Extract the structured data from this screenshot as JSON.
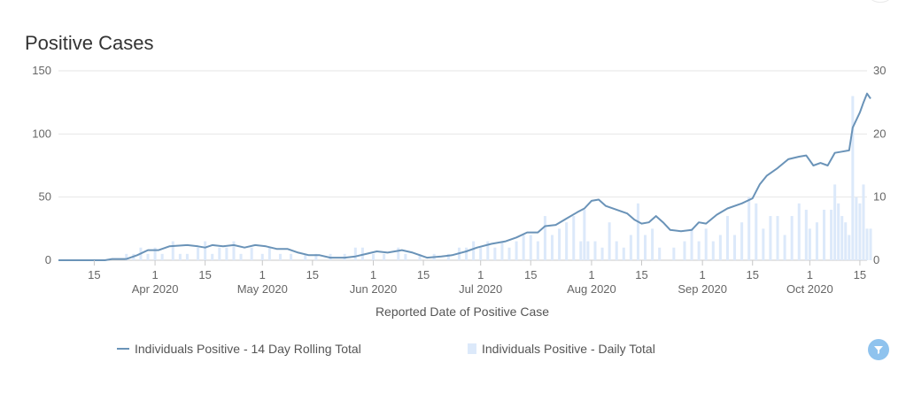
{
  "chart_data": {
    "type": "bar+line",
    "title": "Positive Cases",
    "xlabel": "Reported Date of Positive Case",
    "x_start": "2020-03-05",
    "x_end": "2020-10-17",
    "y_left": {
      "min": 0,
      "max": 150,
      "ticks": [
        0,
        50,
        100,
        150
      ]
    },
    "y_right": {
      "min": 0,
      "max": 30,
      "ticks": [
        0,
        10,
        20,
        30
      ]
    },
    "x_ticks": [
      {
        "date": "2020-03-15",
        "label": "15",
        "month": ""
      },
      {
        "date": "2020-04-01",
        "label": "1",
        "month": "Apr 2020"
      },
      {
        "date": "2020-04-15",
        "label": "15",
        "month": ""
      },
      {
        "date": "2020-05-01",
        "label": "1",
        "month": "May 2020"
      },
      {
        "date": "2020-05-15",
        "label": "15",
        "month": ""
      },
      {
        "date": "2020-06-01",
        "label": "1",
        "month": "Jun 2020"
      },
      {
        "date": "2020-06-15",
        "label": "15",
        "month": ""
      },
      {
        "date": "2020-07-01",
        "label": "1",
        "month": "Jul 2020"
      },
      {
        "date": "2020-07-15",
        "label": "15",
        "month": ""
      },
      {
        "date": "2020-08-01",
        "label": "1",
        "month": "Aug 2020"
      },
      {
        "date": "2020-08-15",
        "label": "15",
        "month": ""
      },
      {
        "date": "2020-09-01",
        "label": "1",
        "month": "Sep 2020"
      },
      {
        "date": "2020-09-15",
        "label": "15",
        "month": ""
      },
      {
        "date": "2020-10-01",
        "label": "1",
        "month": "Oct 2020"
      },
      {
        "date": "2020-10-15",
        "label": "15",
        "month": ""
      }
    ],
    "series": [
      {
        "name": "Individuals Positive - 14 Day Rolling Total",
        "type": "line",
        "axis": "left",
        "color": "#6a93b8",
        "points": [
          [
            "2020-03-05",
            0
          ],
          [
            "2020-03-18",
            0
          ],
          [
            "2020-03-20",
            1
          ],
          [
            "2020-03-24",
            1
          ],
          [
            "2020-03-27",
            4
          ],
          [
            "2020-03-30",
            8
          ],
          [
            "2020-04-02",
            8
          ],
          [
            "2020-04-05",
            11
          ],
          [
            "2020-04-10",
            12
          ],
          [
            "2020-04-13",
            11
          ],
          [
            "2020-04-15",
            10
          ],
          [
            "2020-04-17",
            12
          ],
          [
            "2020-04-20",
            11
          ],
          [
            "2020-04-23",
            12
          ],
          [
            "2020-04-26",
            10
          ],
          [
            "2020-04-29",
            12
          ],
          [
            "2020-05-02",
            11
          ],
          [
            "2020-05-05",
            9
          ],
          [
            "2020-05-08",
            9
          ],
          [
            "2020-05-11",
            6
          ],
          [
            "2020-05-14",
            4
          ],
          [
            "2020-05-17",
            4
          ],
          [
            "2020-05-20",
            2
          ],
          [
            "2020-05-24",
            2
          ],
          [
            "2020-05-27",
            3
          ],
          [
            "2020-05-30",
            5
          ],
          [
            "2020-06-02",
            7
          ],
          [
            "2020-06-05",
            6
          ],
          [
            "2020-06-09",
            8
          ],
          [
            "2020-06-12",
            6
          ],
          [
            "2020-06-16",
            2
          ],
          [
            "2020-06-20",
            3
          ],
          [
            "2020-06-23",
            4
          ],
          [
            "2020-06-27",
            7
          ],
          [
            "2020-06-30",
            10
          ],
          [
            "2020-07-04",
            13
          ],
          [
            "2020-07-08",
            15
          ],
          [
            "2020-07-11",
            18
          ],
          [
            "2020-07-14",
            22
          ],
          [
            "2020-07-17",
            22
          ],
          [
            "2020-07-19",
            27
          ],
          [
            "2020-07-22",
            28
          ],
          [
            "2020-07-25",
            33
          ],
          [
            "2020-07-28",
            38
          ],
          [
            "2020-07-30",
            41
          ],
          [
            "2020-08-01",
            47
          ],
          [
            "2020-08-03",
            48
          ],
          [
            "2020-08-05",
            43
          ],
          [
            "2020-08-08",
            40
          ],
          [
            "2020-08-11",
            37
          ],
          [
            "2020-08-13",
            32
          ],
          [
            "2020-08-15",
            29
          ],
          [
            "2020-08-17",
            30
          ],
          [
            "2020-08-19",
            35
          ],
          [
            "2020-08-21",
            30
          ],
          [
            "2020-08-23",
            24
          ],
          [
            "2020-08-26",
            23
          ],
          [
            "2020-08-29",
            24
          ],
          [
            "2020-08-31",
            30
          ],
          [
            "2020-09-02",
            29
          ],
          [
            "2020-09-05",
            36
          ],
          [
            "2020-09-08",
            41
          ],
          [
            "2020-09-12",
            45
          ],
          [
            "2020-09-15",
            49
          ],
          [
            "2020-09-17",
            60
          ],
          [
            "2020-09-19",
            67
          ],
          [
            "2020-09-22",
            73
          ],
          [
            "2020-09-25",
            80
          ],
          [
            "2020-09-28",
            82
          ],
          [
            "2020-09-30",
            83
          ],
          [
            "2020-10-02",
            75
          ],
          [
            "2020-10-04",
            77
          ],
          [
            "2020-10-06",
            75
          ],
          [
            "2020-10-08",
            85
          ],
          [
            "2020-10-10",
            86
          ],
          [
            "2020-10-12",
            87
          ],
          [
            "2020-10-13",
            105
          ],
          [
            "2020-10-15",
            117
          ],
          [
            "2020-10-16",
            125
          ],
          [
            "2020-10-17",
            132
          ],
          [
            "2020-10-18",
            128
          ]
        ]
      },
      {
        "name": "Individuals Positive - Daily Total",
        "type": "bar",
        "axis": "right",
        "color": "#dce9fa",
        "points": [
          [
            "2020-03-24",
            1
          ],
          [
            "2020-03-26",
            1
          ],
          [
            "2020-03-28",
            2
          ],
          [
            "2020-03-30",
            1
          ],
          [
            "2020-04-01",
            2
          ],
          [
            "2020-04-03",
            1
          ],
          [
            "2020-04-06",
            3
          ],
          [
            "2020-04-08",
            1
          ],
          [
            "2020-04-10",
            1
          ],
          [
            "2020-04-13",
            2
          ],
          [
            "2020-04-15",
            3
          ],
          [
            "2020-04-17",
            1
          ],
          [
            "2020-04-19",
            2
          ],
          [
            "2020-04-21",
            2
          ],
          [
            "2020-04-23",
            3
          ],
          [
            "2020-04-25",
            1
          ],
          [
            "2020-04-28",
            2
          ],
          [
            "2020-05-01",
            1
          ],
          [
            "2020-05-03",
            2
          ],
          [
            "2020-05-06",
            1
          ],
          [
            "2020-05-09",
            1
          ],
          [
            "2020-05-13",
            1
          ],
          [
            "2020-05-16",
            1
          ],
          [
            "2020-05-20",
            1
          ],
          [
            "2020-05-24",
            1
          ],
          [
            "2020-05-27",
            2
          ],
          [
            "2020-05-29",
            2
          ],
          [
            "2020-06-01",
            1
          ],
          [
            "2020-06-04",
            1
          ],
          [
            "2020-06-08",
            2
          ],
          [
            "2020-06-10",
            1
          ],
          [
            "2020-06-14",
            1
          ],
          [
            "2020-06-18",
            1
          ],
          [
            "2020-06-22",
            1
          ],
          [
            "2020-06-25",
            2
          ],
          [
            "2020-06-27",
            2
          ],
          [
            "2020-06-29",
            3
          ],
          [
            "2020-07-01",
            2
          ],
          [
            "2020-07-03",
            3
          ],
          [
            "2020-07-05",
            2
          ],
          [
            "2020-07-07",
            3
          ],
          [
            "2020-07-09",
            2
          ],
          [
            "2020-07-11",
            3
          ],
          [
            "2020-07-13",
            4
          ],
          [
            "2020-07-15",
            4
          ],
          [
            "2020-07-17",
            3
          ],
          [
            "2020-07-19",
            7
          ],
          [
            "2020-07-21",
            4
          ],
          [
            "2020-07-23",
            5
          ],
          [
            "2020-07-25",
            6
          ],
          [
            "2020-07-27",
            7
          ],
          [
            "2020-07-29",
            3
          ],
          [
            "2020-07-30",
            8
          ],
          [
            "2020-07-31",
            3
          ],
          [
            "2020-08-02",
            3
          ],
          [
            "2020-08-04",
            2
          ],
          [
            "2020-08-06",
            6
          ],
          [
            "2020-08-08",
            3
          ],
          [
            "2020-08-10",
            2
          ],
          [
            "2020-08-12",
            4
          ],
          [
            "2020-08-14",
            9
          ],
          [
            "2020-08-16",
            4
          ],
          [
            "2020-08-18",
            5
          ],
          [
            "2020-08-20",
            2
          ],
          [
            "2020-08-24",
            2
          ],
          [
            "2020-08-27",
            3
          ],
          [
            "2020-08-29",
            5
          ],
          [
            "2020-08-31",
            3
          ],
          [
            "2020-09-02",
            5
          ],
          [
            "2020-09-04",
            3
          ],
          [
            "2020-09-06",
            4
          ],
          [
            "2020-09-08",
            7
          ],
          [
            "2020-09-10",
            4
          ],
          [
            "2020-09-12",
            6
          ],
          [
            "2020-09-14",
            10
          ],
          [
            "2020-09-16",
            9
          ],
          [
            "2020-09-18",
            5
          ],
          [
            "2020-09-20",
            7
          ],
          [
            "2020-09-22",
            7
          ],
          [
            "2020-09-24",
            4
          ],
          [
            "2020-09-26",
            7
          ],
          [
            "2020-09-28",
            9
          ],
          [
            "2020-09-30",
            8
          ],
          [
            "2020-10-01",
            5
          ],
          [
            "2020-10-03",
            6
          ],
          [
            "2020-10-05",
            8
          ],
          [
            "2020-10-07",
            8
          ],
          [
            "2020-10-08",
            12
          ],
          [
            "2020-10-09",
            9
          ],
          [
            "2020-10-10",
            7
          ],
          [
            "2020-10-11",
            6
          ],
          [
            "2020-10-12",
            4
          ],
          [
            "2020-10-13",
            26
          ],
          [
            "2020-10-14",
            10
          ],
          [
            "2020-10-15",
            9
          ],
          [
            "2020-10-16",
            12
          ],
          [
            "2020-10-17",
            5
          ],
          [
            "2020-10-18",
            5
          ]
        ]
      }
    ]
  }
}
